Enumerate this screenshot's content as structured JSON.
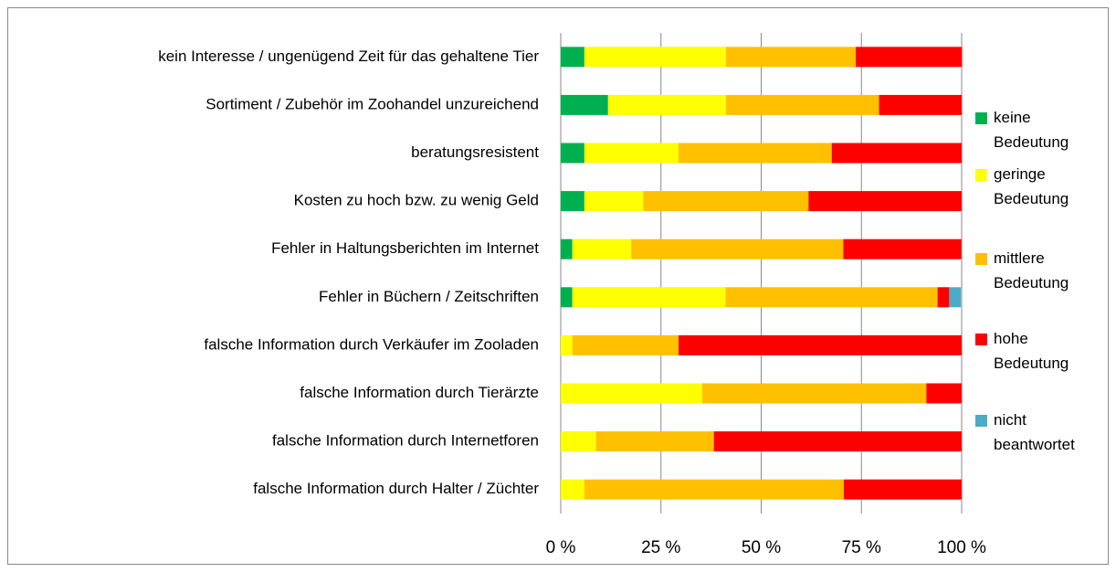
{
  "chart_data": {
    "type": "stacked_barh",
    "categories": [
      "kein Interesse / ungenügend Zeit für das gehaltene Tier",
      "Sortiment / Zubehör im Zoohandel unzureichend",
      "beratungsresistent",
      "Kosten zu hoch bzw. zu wenig Geld",
      "Fehler in Haltungsberichten im Internet",
      "Fehler in Büchern / Zeitschriften",
      "falsche Information durch Verkäufer im Zooladen",
      "falsche Information durch Tierärzte",
      "falsche Information durch Internetforen",
      "falsche Information durch Halter / Züchter"
    ],
    "series": [
      {
        "name": "keine Bedeutung",
        "color": "#00b050",
        "values": [
          5.9,
          11.8,
          5.9,
          5.9,
          2.9,
          2.9,
          0,
          0,
          0,
          0
        ]
      },
      {
        "name": "geringe Bedeutung",
        "color": "#ffff00",
        "values": [
          35.3,
          29.4,
          23.5,
          14.7,
          14.7,
          38.2,
          2.9,
          35.3,
          8.8,
          5.9
        ]
      },
      {
        "name": "mittlere Bedeutung",
        "color": "#ffc000",
        "values": [
          32.4,
          38.2,
          38.2,
          41.2,
          52.9,
          52.9,
          26.5,
          55.9,
          29.4,
          64.7
        ]
      },
      {
        "name": "hohe Bedeutung",
        "color": "#ff0000",
        "values": [
          26.5,
          20.6,
          32.4,
          38.2,
          29.4,
          2.9,
          70.6,
          8.8,
          61.8,
          29.4
        ]
      },
      {
        "name": "nicht beantwortet",
        "color": "#4bacc6",
        "values": [
          0,
          0,
          0,
          0,
          0,
          2.9,
          0,
          0,
          0,
          0
        ]
      }
    ],
    "xlim": [
      0,
      100
    ],
    "xticks": [
      {
        "value": 0,
        "label": "0 %"
      },
      {
        "value": 25,
        "label": "25 %"
      },
      {
        "value": 50,
        "label": "50 %"
      },
      {
        "value": 75,
        "label": "75 %"
      },
      {
        "value": 100,
        "label": "100 %"
      }
    ],
    "grid": true
  }
}
